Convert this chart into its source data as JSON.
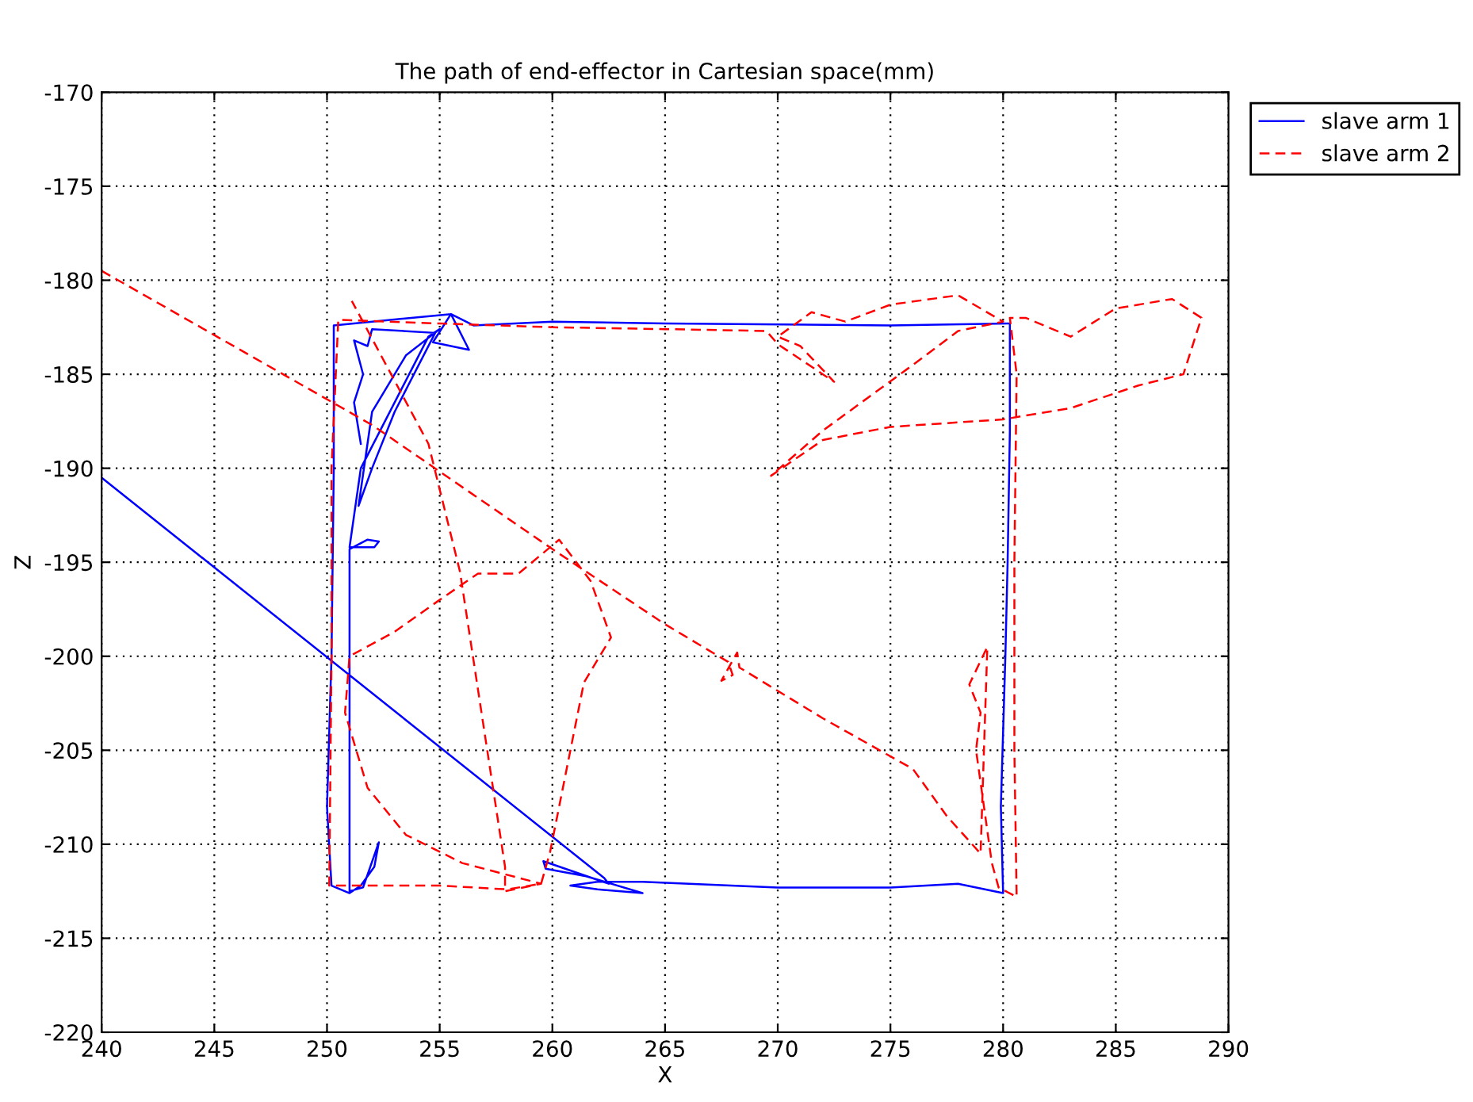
{
  "chart_data": {
    "type": "line",
    "title": "The path of end-effector in Cartesian space(mm)",
    "xlabel": "X",
    "ylabel": "Z",
    "xlim": [
      240,
      290
    ],
    "xticks": [
      240,
      245,
      250,
      255,
      260,
      265,
      270,
      275,
      280,
      285,
      290
    ],
    "ylim": [
      -220,
      -170
    ],
    "yticks": [
      -220,
      -215,
      -210,
      -205,
      -200,
      -195,
      -190,
      -185,
      -180,
      -175,
      -170
    ],
    "grid": true,
    "legend": "top right",
    "marker": "none",
    "series": [
      {
        "name": "slave arm 1",
        "color": "#0000ff",
        "line_style": "solid",
        "x": [
          240,
          262.3,
          262.5,
          259.6,
          259.7,
          261.5,
          264,
          262,
          260.8,
          262,
          264,
          270,
          275,
          278,
          280,
          279.9,
          280.1,
          280.2,
          280.3,
          280.3,
          275,
          265,
          260,
          256.5,
          255.5,
          254.7,
          256.3,
          255.5,
          250.3,
          250.3,
          250.2,
          250,
          250.2,
          251,
          251.5,
          252.1,
          252.3,
          251.6,
          251,
          251,
          251.8,
          252.3,
          252.1,
          251,
          251.5,
          253,
          254.5,
          255,
          253.5,
          252,
          251.4,
          252,
          253,
          254.8,
          252,
          251.8,
          251.2,
          251.6,
          251.2,
          251.5
        ],
        "values": [
          -190.5,
          -211.8,
          -212.1,
          -210.9,
          -211.3,
          -211.7,
          -212.6,
          -212.4,
          -212.2,
          -212,
          -212,
          -212.3,
          -212.3,
          -212.1,
          -212.6,
          -208,
          -200,
          -195,
          -188,
          -182.3,
          -182.4,
          -182.3,
          -182.2,
          -182.4,
          -181.8,
          -183.3,
          -183.7,
          -181.8,
          -182.4,
          -190,
          -200,
          -208,
          -212.2,
          -212.6,
          -212.2,
          -211.2,
          -209.9,
          -212.3,
          -212.5,
          -194.3,
          -193.8,
          -193.9,
          -194.2,
          -194.2,
          -190,
          -186.5,
          -183,
          -182.6,
          -184,
          -187,
          -192,
          -190,
          -187,
          -182.8,
          -182.6,
          -183.5,
          -183.2,
          -185,
          -186.5,
          -188.7
        ]
      },
      {
        "name": "slave arm 2",
        "color": "#ff0000",
        "line_style": "dashed",
        "x": [
          240,
          252,
          260,
          265,
          267.8,
          268,
          267.5,
          268.2,
          268.3,
          272,
          276,
          277.5,
          279,
          279.3,
          278.5,
          279,
          278.8,
          279.5,
          279.8,
          280.6,
          280.5,
          280.5,
          280.6,
          280.3,
          281,
          283,
          285,
          287.5,
          288.8,
          288,
          286,
          283,
          280,
          275,
          272,
          269.7,
          272,
          276,
          278,
          280,
          278,
          275,
          273,
          271.5,
          270,
          271,
          272.5,
          270,
          269.5,
          265,
          260,
          255,
          250.5,
          250.2,
          250.2,
          250.1,
          255,
          258,
          259.5,
          259.9,
          261.4,
          262.6,
          261.7,
          260.3,
          258.5,
          256.7,
          255,
          253,
          251,
          250.8,
          251.8,
          253.5,
          256,
          259.5,
          257.9,
          257.9,
          255.9,
          254.5,
          251.1
        ],
        "values": [
          -179.5,
          -187.7,
          -194.3,
          -198.3,
          -200.3,
          -201,
          -201.3,
          -199.8,
          -200.6,
          -203.3,
          -206,
          -208.5,
          -210.5,
          -199.5,
          -201.5,
          -203,
          -205,
          -211,
          -212.3,
          -212.8,
          -205,
          -195,
          -185,
          -182,
          -182,
          -183,
          -181.5,
          -181,
          -182,
          -185,
          -185.6,
          -186.8,
          -187.4,
          -187.8,
          -188.5,
          -190.4,
          -188,
          -184.5,
          -182.7,
          -182.2,
          -180.8,
          -181.3,
          -182.2,
          -181.7,
          -183,
          -183.5,
          -185.4,
          -183.4,
          -182.7,
          -182.6,
          -182.5,
          -182.3,
          -182.1,
          -190,
          -200,
          -212.2,
          -212.2,
          -212.4,
          -212.1,
          -210.4,
          -201.4,
          -199,
          -196,
          -193.8,
          -195.6,
          -195.6,
          -197,
          -198.7,
          -200,
          -203,
          -207,
          -209.5,
          -211,
          -212.1,
          -212.5,
          -211.2,
          -195.5,
          -188.7,
          -181.1
        ]
      }
    ]
  }
}
